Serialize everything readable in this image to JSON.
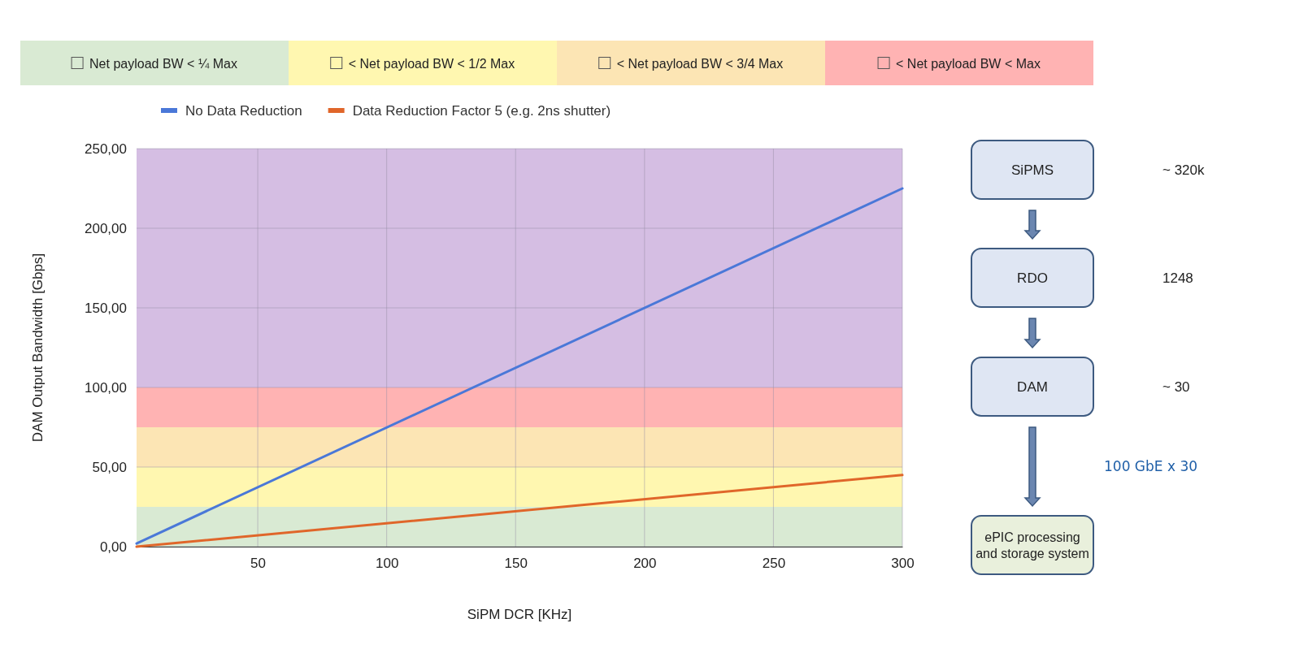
{
  "chart_data": [
    {
      "type": "line",
      "xlabel": "SiPM DCR [KHz]",
      "ylabel": "DAM Output Bandwidth [Gbps]",
      "xlim": [
        3,
        300
      ],
      "xticks": [
        50,
        100,
        150,
        200,
        250,
        300
      ],
      "ylim": [
        0,
        250
      ],
      "yticks": [
        {
          "value": 0,
          "label": "0,00"
        },
        {
          "value": 50,
          "label": "50,00"
        },
        {
          "value": 100,
          "label": "100,00"
        },
        {
          "value": 150,
          "label": "150,00"
        },
        {
          "value": 200,
          "label": "200,00"
        },
        {
          "value": 250,
          "label": "250,00"
        }
      ],
      "grid": true,
      "legend": "top left",
      "marker": "none",
      "line_style": "solid",
      "x": [
        3,
        300
      ],
      "series": [
        {
          "name": "No Data Reduction",
          "color": "#4a78d8",
          "values": [
            2,
            225
          ]
        },
        {
          "name": "Data Reduction Factor 5 (e.g. 2ns shutter)",
          "color": "#e0662a",
          "values": [
            0,
            45
          ]
        }
      ],
      "bands": [
        {
          "axis": "y",
          "from": 0,
          "to": 25,
          "label": "Net payload BW < ¼ Max",
          "color": "#d9ead3"
        },
        {
          "axis": "y",
          "from": 25,
          "to": 50,
          "label": "< Net payload BW < 1/2 Max",
          "color": "#fff7b0"
        },
        {
          "axis": "y",
          "from": 50,
          "to": 75,
          "label": "< Net payload BW < 3/4 Max",
          "color": "#fce5b4"
        },
        {
          "axis": "y",
          "from": 75,
          "to": 100,
          "label": "< Net payload BW < Max",
          "color": "#ffb3b3"
        },
        {
          "axis": "y",
          "from": 100,
          "to": 250,
          "color": "#d5bee3"
        }
      ]
    },
    {
      "type": "other",
      "annotations": [
        "SiPMS",
        "~ 320k",
        "RDO",
        "1248",
        "DAM",
        "~ 30",
        "100 GbE x 30",
        "ePIC processing and storage system"
      ]
    }
  ]
}
